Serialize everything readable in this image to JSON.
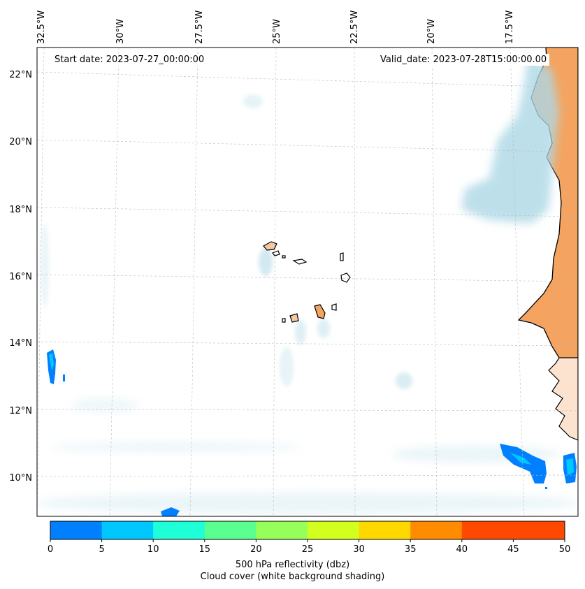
{
  "map": {
    "start_date": "Start date: 2023-07-27_00:00:00",
    "valid_date": "Valid_date: 2023-07-28T15:00:00.00",
    "lon_labels": [
      "32.5°W",
      "30°W",
      "27.5°W",
      "25°W",
      "22.5°W",
      "20°W",
      "17.5°W"
    ],
    "lat_labels": [
      "22°N",
      "20°N",
      "18°N",
      "16°N",
      "14°N",
      "12°N",
      "10°N"
    ],
    "land_color": "#f4a460",
    "cloud_color": "#add8e6",
    "coast_color": "#000000"
  },
  "colorbar": {
    "ticks": [
      "0",
      "5",
      "10",
      "15",
      "20",
      "25",
      "30",
      "35",
      "40",
      "45",
      "50"
    ],
    "colors": [
      "#0080ff",
      "#00c8ff",
      "#1effd8",
      "#5aff90",
      "#96ff5a",
      "#d2ff1e",
      "#ffd800",
      "#ff8c00",
      "#ff4800",
      "#ff4800"
    ],
    "label": "500 hPa reflectivity (dbz)",
    "sublabel": "Cloud cover (white background shading)"
  }
}
